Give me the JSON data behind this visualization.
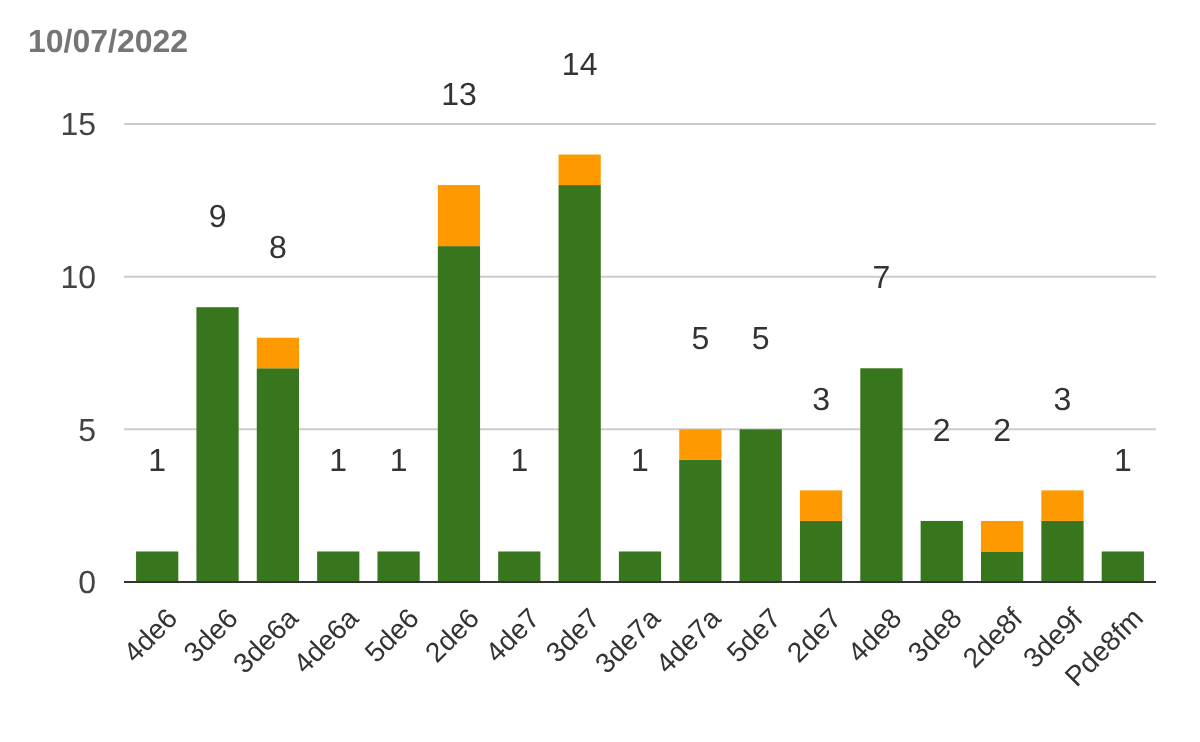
{
  "chart_data": {
    "type": "bar",
    "title": "10/07/2022",
    "categories": [
      "4de6",
      "3de6",
      "3de6a",
      "4de6a",
      "5de6",
      "2de6",
      "4de7",
      "3de7",
      "3de7a",
      "4de7a",
      "5de7",
      "2de7",
      "4de8",
      "3de8",
      "2de8f",
      "3de9f",
      "Pde8fm"
    ],
    "series": [
      {
        "color": "#38761d",
        "values": [
          1,
          9,
          7,
          1,
          1,
          11,
          1,
          13,
          1,
          4,
          5,
          2,
          7,
          2,
          1,
          2,
          1
        ]
      },
      {
        "color": "#ff9900",
        "values": [
          0,
          0,
          1,
          0,
          0,
          2,
          0,
          1,
          0,
          1,
          0,
          1,
          0,
          0,
          1,
          1,
          0
        ]
      }
    ],
    "stacked": true,
    "totals": [
      "1",
      "9",
      "8",
      "1",
      "1",
      "13",
      "1",
      "14",
      "1",
      "5",
      "5",
      "3",
      "7",
      "2",
      "2",
      "3",
      "1"
    ],
    "ylim": [
      0,
      15
    ],
    "yticks": [
      0,
      5,
      10,
      15
    ],
    "grid": "y"
  }
}
